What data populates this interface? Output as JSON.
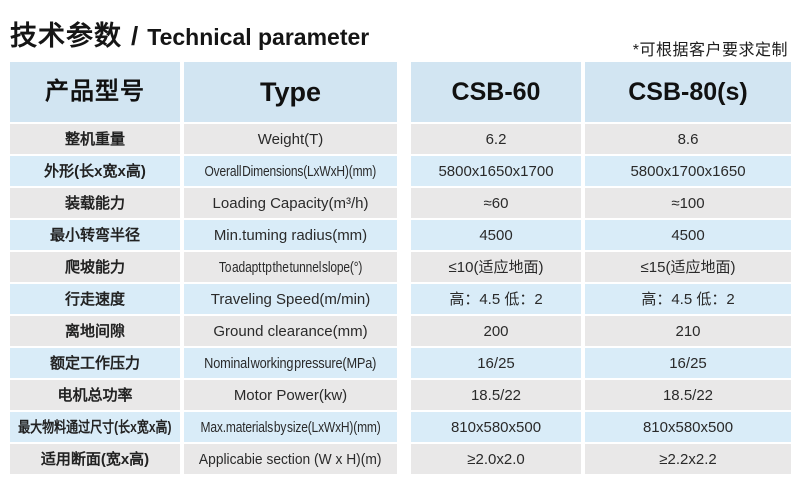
{
  "page": {
    "title_cn": "技术参数",
    "title_sep": "/",
    "title_en": "Technical parameter",
    "note": "*可根据客户要求定制"
  },
  "colors": {
    "header_bg": "#d2e5f2",
    "row_blue": "#d9ecf8",
    "row_gray": "#e9e8e8",
    "text": "#2a2a2a"
  },
  "table": {
    "headers": {
      "param_cn": "产品型号",
      "param_en": "Type",
      "model_1": "CSB-60",
      "model_2": "CSB-80(s)"
    },
    "rows": [
      {
        "cn": "整机重量",
        "en": "Weight(T)",
        "csb60": "6.2",
        "csb80": "8.6"
      },
      {
        "cn": "外形(长x宽x高)",
        "en": "Overall Dimensions(LxWxH)(mm)",
        "csb60": "5800x1650x1700",
        "csb80": "5800x1700x1650"
      },
      {
        "cn": "装载能力",
        "en": "Loading Capacity(m³/h)",
        "csb60": "≈60",
        "csb80": "≈100"
      },
      {
        "cn": "最小转弯半径",
        "en": "Min.tuming radius(mm)",
        "csb60": "4500",
        "csb80": "4500"
      },
      {
        "cn": "爬坡能力",
        "en": "To adapt tp the tunnel slope(°)",
        "csb60": "≤10(适应地面)",
        "csb80": "≤15(适应地面)"
      },
      {
        "cn": "行走速度",
        "en": "Traveling Speed(m/min)",
        "csb60": "高：4.5 低：2",
        "csb80": "高：4.5 低：2"
      },
      {
        "cn": "离地间隙",
        "en": "Ground clearance(mm)",
        "csb60": "200",
        "csb80": "210"
      },
      {
        "cn": "额定工作压力",
        "en": "Nominal working pressure(MPa)",
        "csb60": "16/25",
        "csb80": "16/25"
      },
      {
        "cn": "电机总功率",
        "en": "Motor Power(kw)",
        "csb60": "18.5/22",
        "csb80": "18.5/22"
      },
      {
        "cn": "最大物料通过尺寸(长x宽x高)",
        "en": "Max.materials by size(LxWxH)(mm)",
        "csb60": "810x580x500",
        "csb80": "810x580x500"
      },
      {
        "cn": "适用断面(宽x高)",
        "en": "Applicabie section (W x H)(m)",
        "csb60": "≥2.0x2.0",
        "csb80": "≥2.2x2.2"
      }
    ]
  }
}
